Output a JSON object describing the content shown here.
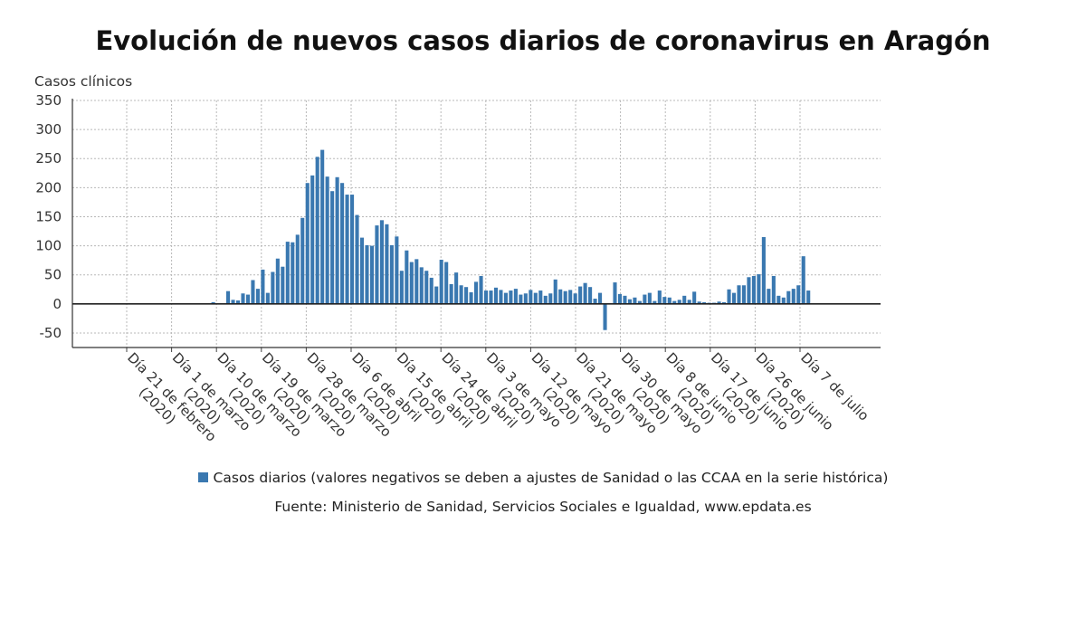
{
  "chart_data": {
    "type": "bar",
    "title": "Evolución de nuevos casos diarios de coronavirus en Aragón",
    "ylabel": "Casos clínicos",
    "xlabel": "",
    "ylim": [
      -75,
      350
    ],
    "yticks": [
      350,
      300,
      250,
      200,
      150,
      100,
      50,
      0,
      -50
    ],
    "grid": true,
    "legend_position": "bottom",
    "x_ticks": [
      {
        "label": "Día 21 de febrero",
        "year": "(2020)"
      },
      {
        "label": "Día 1 de marzo",
        "year": "(2020)"
      },
      {
        "label": "Día 10 de marzo",
        "year": "(2020)"
      },
      {
        "label": "Día 19 de marzo",
        "year": "(2020)"
      },
      {
        "label": "Día 28 de marzo",
        "year": "(2020)"
      },
      {
        "label": "Día 6 de abril",
        "year": "(2020)"
      },
      {
        "label": "Día 15 de abril",
        "year": "(2020)"
      },
      {
        "label": "Día 24 de abril",
        "year": "(2020)"
      },
      {
        "label": "Día 3 de mayo",
        "year": "(2020)"
      },
      {
        "label": "Día 12 de mayo",
        "year": "(2020)"
      },
      {
        "label": "Día 21 de mayo",
        "year": "(2020)"
      },
      {
        "label": "Día 30 de mayo",
        "year": "(2020)"
      },
      {
        "label": "Día 8 de junio",
        "year": "(2020)"
      },
      {
        "label": "Día 17 de junio",
        "year": "(2020)"
      },
      {
        "label": "Día 26 de junio",
        "year": "(2020)"
      },
      {
        "label": "Día 7 de julio",
        "year": ""
      }
    ],
    "series": [
      {
        "name": "Casos diarios (valores negativos se deben a ajustes de Sanidad o las CCAA en la serie histórica)",
        "color": "#3a78b0",
        "values": [
          0,
          0,
          0,
          0,
          0,
          0,
          0,
          0,
          0,
          0,
          0,
          0,
          0,
          0,
          0,
          0,
          1,
          0,
          1,
          0,
          0,
          1,
          3,
          1,
          1,
          22,
          7,
          6,
          18,
          16,
          41,
          26,
          59,
          19,
          55,
          78,
          64,
          107,
          106,
          119,
          148,
          208,
          221,
          253,
          265,
          219,
          194,
          218,
          208,
          188,
          188,
          153,
          114,
          101,
          100,
          135,
          144,
          137,
          101,
          116,
          57,
          92,
          72,
          77,
          63,
          57,
          45,
          30,
          76,
          72,
          34,
          54,
          32,
          29,
          20,
          38,
          48,
          23,
          23,
          28,
          24,
          19,
          23,
          26,
          16,
          18,
          24,
          19,
          23,
          14,
          18,
          42,
          25,
          22,
          24,
          18,
          30,
          36,
          29,
          9,
          19,
          -45,
          0,
          37,
          17,
          14,
          8,
          11,
          5,
          16,
          19,
          5,
          23,
          12,
          11,
          5,
          7,
          14,
          7,
          21,
          4,
          3,
          2,
          2,
          4,
          3,
          25,
          19,
          32,
          32,
          46,
          48,
          51,
          115,
          26,
          48,
          14,
          11,
          22,
          26,
          32,
          82,
          23
        ]
      }
    ]
  },
  "legend": {
    "label": "Casos diarios (valores negativos se deben a ajustes de Sanidad o las CCAA en la serie histórica)"
  },
  "source": "Fuente: Ministerio de Sanidad, Servicios Sociales e Igualdad, www.epdata.es"
}
